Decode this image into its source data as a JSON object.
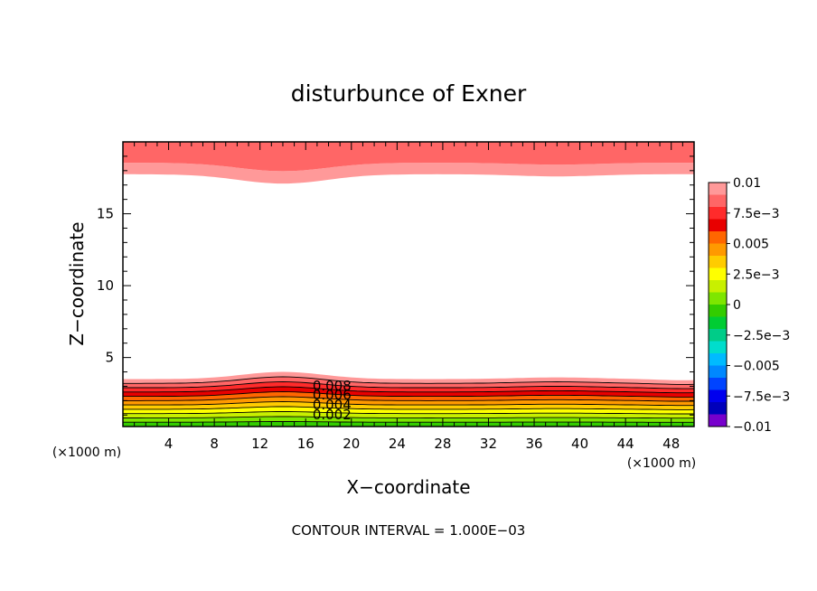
{
  "chart_data": {
    "type": "heatmap",
    "title": "disturbunce of Exner",
    "xlabel": "X−coordinate",
    "ylabel": "Z−coordinate",
    "x_unit": "(×1000 m)",
    "y_unit": "(×1000 m)",
    "xlim": [
      0,
      50
    ],
    "ylim": [
      0.2,
      20
    ],
    "xticks": [
      4,
      8,
      12,
      16,
      20,
      24,
      28,
      32,
      36,
      40,
      44,
      48
    ],
    "yticks": [
      5,
      10,
      15
    ],
    "footer": "CONTOUR INTERVAL = 1.000E−03",
    "contour_labels": [
      {
        "text": "0.008",
        "x": 18.3,
        "z": 2.7
      },
      {
        "text": "0.006",
        "x": 18.3,
        "z": 2.1
      },
      {
        "text": "0.004",
        "x": 18.3,
        "z": 1.4
      },
      {
        "text": "0.002",
        "x": 18.3,
        "z": 0.7
      }
    ],
    "colorbar": {
      "labels": [
        "0.01",
        "7.5e−3",
        "0.005",
        "2.5e−3",
        "0",
        "−2.5e−3",
        "−0.005",
        "−7.5e−3",
        "−0.01"
      ],
      "colors": [
        "#ff9999",
        "#ff6666",
        "#ff2b2b",
        "#e80000",
        "#ff6600",
        "#ff9900",
        "#ffcc00",
        "#ffff00",
        "#c8f000",
        "#7ee600",
        "#33cc00",
        "#00cc33",
        "#00cc88",
        "#00ddcc",
        "#00bbff",
        "#0088ff",
        "#0044ff",
        "#0000ee",
        "#0000bb",
        "#7700cc"
      ]
    },
    "bottom_layer_colors": [
      "#33cc00",
      "#7ee600",
      "#c8f000",
      "#ffff00",
      "#ffcc00",
      "#ff9900",
      "#ff6600",
      "#e80000",
      "#ff2b2b",
      "#ff6666",
      "#ff9999"
    ],
    "top_layer_colors": [
      "#ff9999",
      "#ff6666"
    ]
  }
}
